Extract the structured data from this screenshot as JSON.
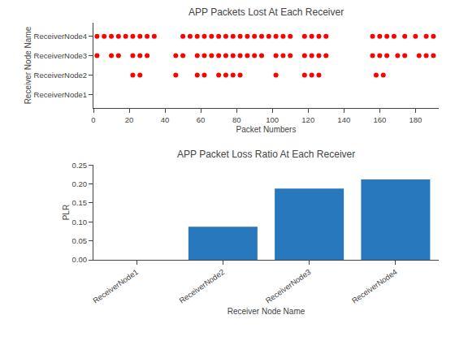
{
  "chart_data": [
    {
      "type": "scatter",
      "title": "APP Packets Lost At Each Receiver",
      "xlabel": "Packet Numbers",
      "ylabel": "Receiver Node Name",
      "categories": [
        "ReceiverNode1",
        "ReceiverNode2",
        "ReceiverNode3",
        "ReceiverNode4"
      ],
      "x": [
        22,
        26,
        46,
        58,
        62,
        70,
        74,
        78,
        82,
        102,
        118,
        122,
        126,
        158,
        162,
        2,
        10,
        14,
        22,
        26,
        30,
        46,
        50,
        58,
        62,
        66,
        70,
        74,
        78,
        82,
        86,
        90,
        94,
        102,
        106,
        110,
        118,
        122,
        126,
        130,
        156,
        160,
        164,
        170,
        174,
        182,
        186,
        190,
        2,
        6,
        10,
        14,
        18,
        22,
        26,
        30,
        34,
        50,
        54,
        58,
        62,
        66,
        70,
        74,
        78,
        82,
        86,
        90,
        94,
        98,
        102,
        106,
        110,
        118,
        122,
        126,
        130,
        156,
        160,
        164,
        168,
        174,
        180,
        186,
        190
      ],
      "y": [
        "ReceiverNode2",
        "ReceiverNode2",
        "ReceiverNode2",
        "ReceiverNode2",
        "ReceiverNode2",
        "ReceiverNode2",
        "ReceiverNode2",
        "ReceiverNode2",
        "ReceiverNode2",
        "ReceiverNode2",
        "ReceiverNode2",
        "ReceiverNode2",
        "ReceiverNode2",
        "ReceiverNode2",
        "ReceiverNode2",
        "ReceiverNode3",
        "ReceiverNode3",
        "ReceiverNode3",
        "ReceiverNode3",
        "ReceiverNode3",
        "ReceiverNode3",
        "ReceiverNode3",
        "ReceiverNode3",
        "ReceiverNode3",
        "ReceiverNode3",
        "ReceiverNode3",
        "ReceiverNode3",
        "ReceiverNode3",
        "ReceiverNode3",
        "ReceiverNode3",
        "ReceiverNode3",
        "ReceiverNode3",
        "ReceiverNode3",
        "ReceiverNode3",
        "ReceiverNode3",
        "ReceiverNode3",
        "ReceiverNode3",
        "ReceiverNode3",
        "ReceiverNode3",
        "ReceiverNode3",
        "ReceiverNode3",
        "ReceiverNode3",
        "ReceiverNode3",
        "ReceiverNode3",
        "ReceiverNode3",
        "ReceiverNode3",
        "ReceiverNode3",
        "ReceiverNode3",
        "ReceiverNode4",
        "ReceiverNode4",
        "ReceiverNode4",
        "ReceiverNode4",
        "ReceiverNode4",
        "ReceiverNode4",
        "ReceiverNode4",
        "ReceiverNode4",
        "ReceiverNode4",
        "ReceiverNode4",
        "ReceiverNode4",
        "ReceiverNode4",
        "ReceiverNode4",
        "ReceiverNode4",
        "ReceiverNode4",
        "ReceiverNode4",
        "ReceiverNode4",
        "ReceiverNode4",
        "ReceiverNode4",
        "ReceiverNode4",
        "ReceiverNode4",
        "ReceiverNode4",
        "ReceiverNode4",
        "ReceiverNode4",
        "ReceiverNode4",
        "ReceiverNode4",
        "ReceiverNode4",
        "ReceiverNode4",
        "ReceiverNode4",
        "ReceiverNode4",
        "ReceiverNode4",
        "ReceiverNode4",
        "ReceiverNode4",
        "ReceiverNode4",
        "ReceiverNode4",
        "ReceiverNode4",
        "ReceiverNode4"
      ],
      "color": "#ff0000",
      "marker": "circle",
      "xlim": [
        0,
        193
      ],
      "xticks": [
        0,
        20,
        40,
        60,
        80,
        100,
        120,
        140,
        160,
        180
      ],
      "grid": false
    },
    {
      "type": "bar",
      "title": "APP Packet Loss Ratio At Each Receiver",
      "xlabel": "Receiver Node Name",
      "ylabel": "PLR",
      "categories": [
        "ReceiverNode1",
        "ReceiverNode2",
        "ReceiverNode3",
        "ReceiverNode4"
      ],
      "values": [
        0.0,
        0.087,
        0.188,
        0.212
      ],
      "color": "#2878BD",
      "ylim": [
        0,
        0.25
      ],
      "yticks": [
        {
          "value": 0,
          "label": "0.00"
        },
        0.05,
        {
          "value": 0.1,
          "label": "0.10"
        },
        0.15,
        {
          "value": 0.2,
          "label": "0.20"
        },
        0.25
      ],
      "grid": false
    }
  ]
}
